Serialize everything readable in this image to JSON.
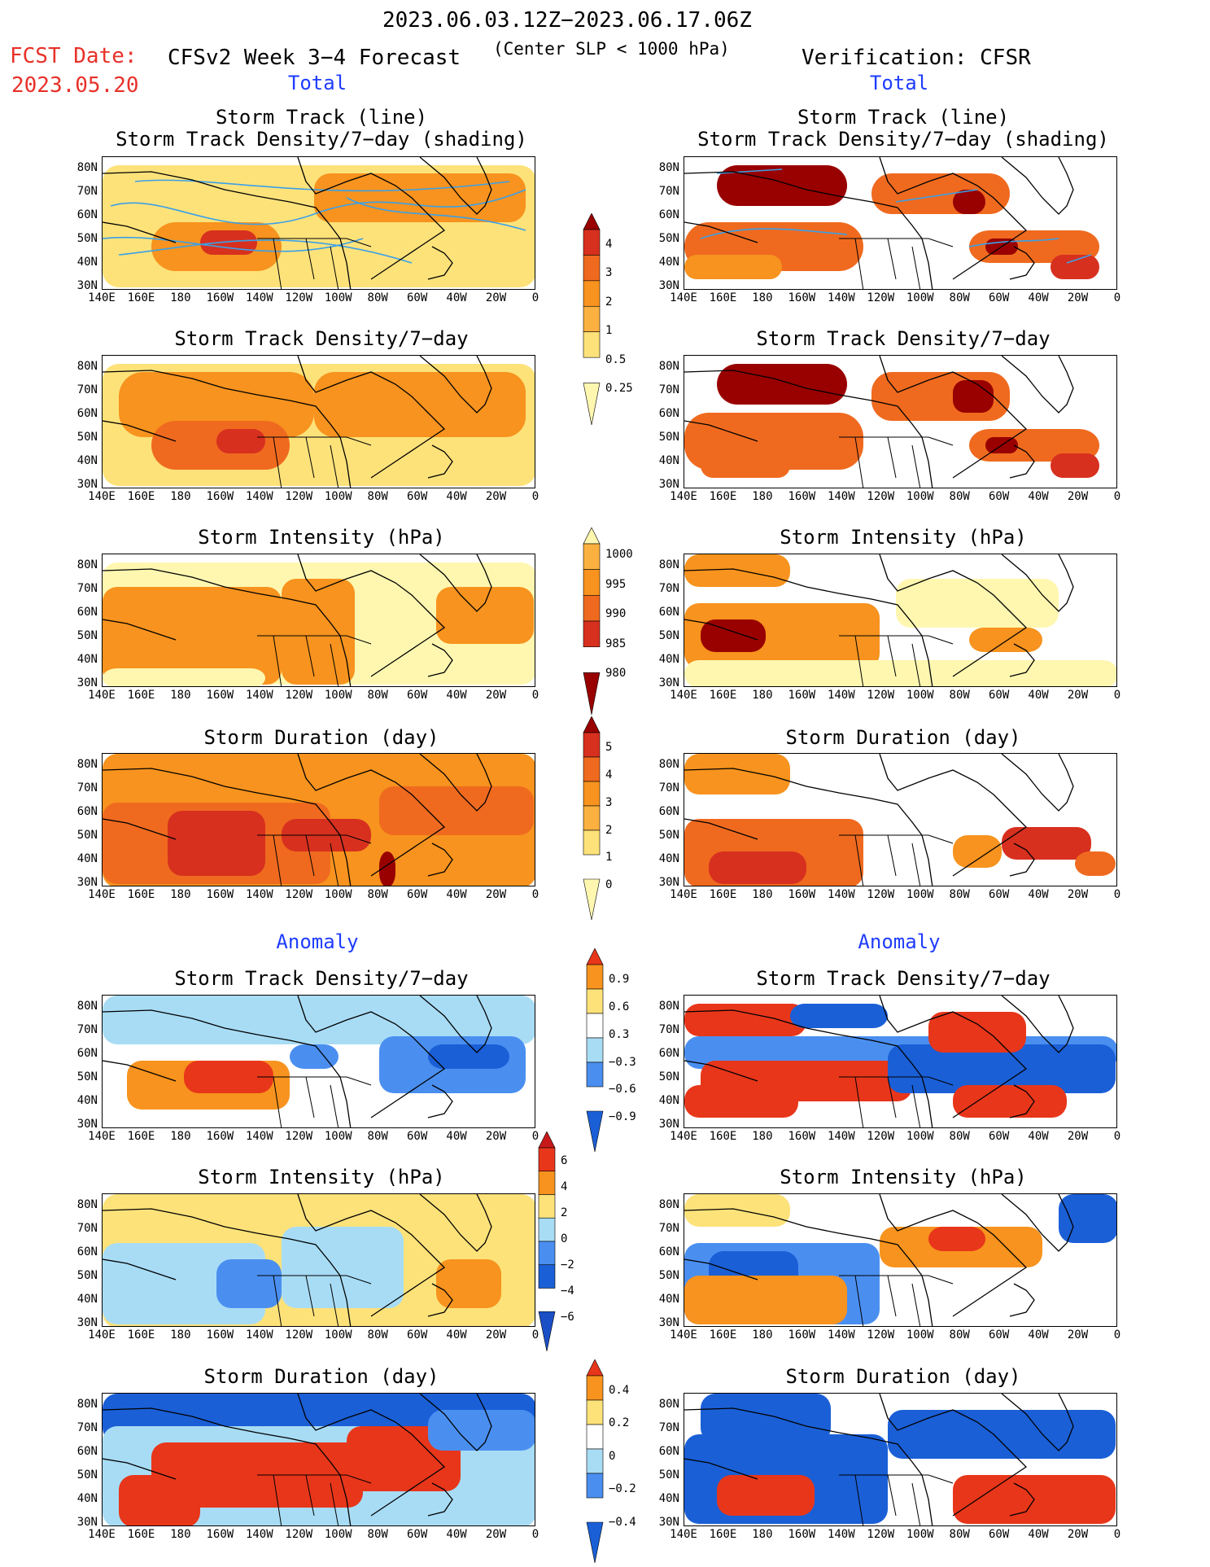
{
  "header": {
    "date_range": "2023.06.03.12Z−2023.06.17.06Z",
    "fcst_label": "FCST Date:",
    "fcst_date": "2023.05.20",
    "model_title": "CFSv2 Week 3−4 Forecast",
    "criterion": "(Center SLP < 1000 hPa)",
    "verification": "Verification: CFSR"
  },
  "sections": {
    "total_left": "Total",
    "total_right": "Total",
    "anomaly_left": "Anomaly",
    "anomaly_right": "Anomaly"
  },
  "panel_titles": {
    "track_line": "Storm Track (line)",
    "track_shading": "Storm Track Density/7−day (shading)",
    "density": "Storm Track Density/7−day",
    "intensity": "Storm Intensity (hPa)",
    "duration": "Storm Duration (day)"
  },
  "axes": {
    "lat_labels": [
      "80N",
      "70N",
      "60N",
      "50N",
      "40N",
      "30N"
    ],
    "lon_labels": [
      "140E",
      "160E",
      "180",
      "160W",
      "140W",
      "120W",
      "100W",
      "80W",
      "60W",
      "40W",
      "20W",
      "0"
    ]
  },
  "colorbars": {
    "density_total": [
      "4",
      "3",
      "2",
      "1",
      "0.5",
      "0.25"
    ],
    "intensity_total": [
      "1000",
      "995",
      "990",
      "985",
      "980"
    ],
    "duration_total": [
      "5",
      "4",
      "3",
      "2",
      "1",
      "0"
    ],
    "density_anom": [
      "0.9",
      "0.6",
      "0.3",
      "−0.3",
      "−0.6",
      "−0.9"
    ],
    "intensity_anom": [
      "6",
      "4",
      "2",
      "0",
      "−2",
      "−4",
      "−6"
    ],
    "duration_anom": [
      "0.4",
      "0.2",
      "0",
      "−0.2",
      "−0.4"
    ]
  },
  "colors": {
    "header_red": "#e8312a",
    "section_blue": "#1e3cff",
    "track_line": "#3aa0e8",
    "warm_scale": [
      "#fff7b0",
      "#fde27a",
      "#fbb040",
      "#f7931e",
      "#ef6a1f",
      "#d7301f",
      "#990000"
    ],
    "anom_scale": [
      "#1a5fd6",
      "#4a8ff0",
      "#a8dcf5",
      "#ffffff",
      "#fde27a",
      "#f7931e",
      "#e8361a"
    ]
  }
}
